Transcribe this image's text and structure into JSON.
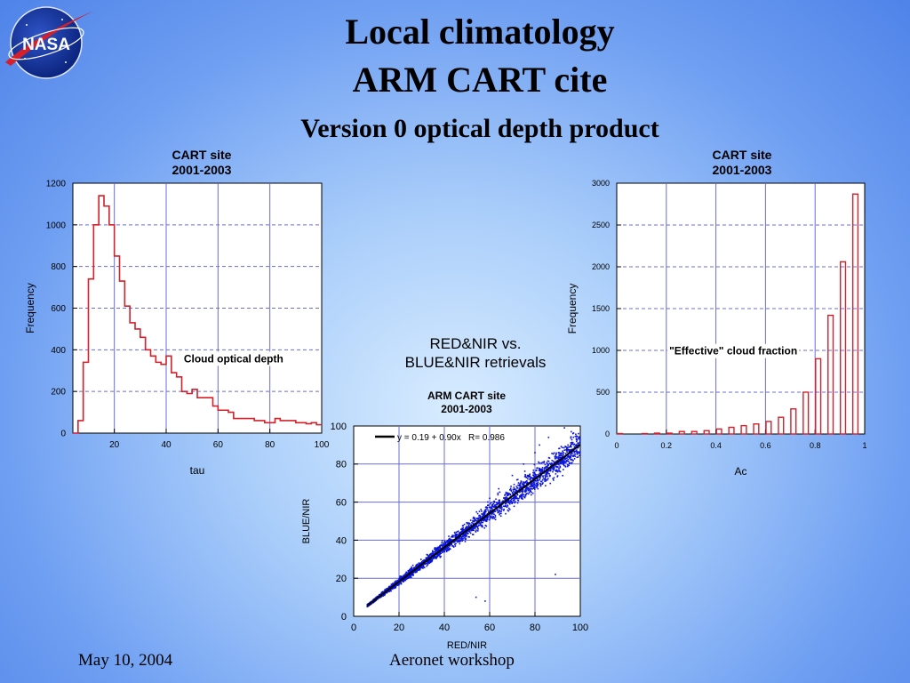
{
  "slide": {
    "title_line1": "Local climatology",
    "title_line2": "ARM CART cite",
    "subtitle": "Version 0 optical depth product",
    "footer_left": "May 10, 2004",
    "footer_center": "Aeronet workshop",
    "logo_text": "NASA",
    "middle_label_line1": "RED&NIR vs.",
    "middle_label_line2": "BLUE&NIR retrievals"
  },
  "chart_data": [
    {
      "type": "bar",
      "title_line1": "CART site",
      "title_line2": "2001-2003",
      "xlabel": "tau",
      "ylabel": "Frequency",
      "annotation": "Cloud optical depth",
      "xlim": [
        4,
        100
      ],
      "ylim": [
        0,
        1200
      ],
      "xticks": [
        20,
        40,
        60,
        80,
        100
      ],
      "yticks": [
        0,
        200,
        400,
        600,
        800,
        1000,
        1200
      ],
      "grid": true,
      "style": "step",
      "bin_width": 2,
      "bin_start": 4,
      "values": [
        0,
        60,
        340,
        740,
        1000,
        1140,
        1090,
        1000,
        850,
        730,
        610,
        530,
        500,
        460,
        400,
        370,
        340,
        330,
        370,
        290,
        270,
        200,
        190,
        210,
        170,
        170,
        170,
        130,
        110,
        110,
        100,
        70,
        70,
        70,
        70,
        60,
        60,
        50,
        50,
        70,
        60,
        60,
        60,
        50,
        50,
        45,
        50,
        40
      ]
    },
    {
      "type": "bar",
      "title_line1": "CART site",
      "title_line2": "2001-2003",
      "xlabel": "Ac",
      "ylabel": "Frequency",
      "annotation": "\"Effective\" cloud fraction",
      "xlim": [
        0,
        1
      ],
      "ylim": [
        0,
        3000
      ],
      "xticks": [
        0,
        0.2,
        0.4,
        0.6,
        0.8,
        1
      ],
      "yticks": [
        0,
        500,
        1000,
        1500,
        2000,
        2500,
        3000
      ],
      "grid": true,
      "style": "separate_bars",
      "bin_width": 0.025,
      "categories": [
        0.0125,
        0.0375,
        0.0625,
        0.0875,
        0.1125,
        0.1375,
        0.1625,
        0.1875,
        0.2125,
        0.2375,
        0.2625,
        0.2875,
        0.3125,
        0.3375,
        0.3625,
        0.3875,
        0.4125,
        0.4375,
        0.4625,
        0.4875,
        0.5125,
        0.5375,
        0.5625,
        0.5875,
        0.6125,
        0.6375,
        0.6625,
        0.6875,
        0.7125,
        0.7375,
        0.7625,
        0.7875,
        0.8125,
        0.8375,
        0.8625,
        0.8875,
        0.9125,
        0.9375,
        0.9625,
        0.9875
      ],
      "values": [
        5,
        0,
        0,
        0,
        5,
        0,
        10,
        0,
        10,
        0,
        30,
        0,
        30,
        0,
        40,
        0,
        60,
        0,
        80,
        0,
        100,
        0,
        120,
        0,
        150,
        0,
        200,
        0,
        300,
        0,
        500,
        0,
        900,
        0,
        1420,
        0,
        2060,
        0,
        2870,
        0
      ]
    },
    {
      "type": "scatter",
      "title_line1": "ARM CART site",
      "title_line2": "2001-2003",
      "xlabel": "RED/NIR",
      "ylabel": "BLUE/NIR",
      "xlim": [
        0,
        100
      ],
      "ylim": [
        0,
        100
      ],
      "xticks": [
        0,
        20,
        40,
        60,
        80,
        100
      ],
      "yticks": [
        0,
        20,
        40,
        60,
        80,
        100
      ],
      "grid": true,
      "legend": "y = 0.19 + 0.90x   R= 0.986",
      "legend_position": "top-left",
      "fit": {
        "intercept": 0.19,
        "slope": 0.9,
        "r": 0.986,
        "x_range": [
          6,
          100
        ]
      },
      "point_cloud": {
        "x_range": [
          6,
          100
        ],
        "count": 3000,
        "relation": "y = 0.19 + 0.90x",
        "spread": [
          0.5,
          8
        ]
      },
      "points": [
        [
          54,
          10
        ],
        [
          58,
          8
        ],
        [
          89,
          22
        ],
        [
          60,
          62
        ],
        [
          64,
          67
        ],
        [
          70,
          74
        ],
        [
          80,
          86
        ],
        [
          86,
          94
        ],
        [
          93,
          99
        ],
        [
          96,
          97
        ],
        [
          82,
          90
        ],
        [
          75,
          80
        ],
        [
          68,
          58
        ],
        [
          72,
          62
        ],
        [
          78,
          68
        ],
        [
          88,
          77
        ],
        [
          90,
          82
        ],
        [
          95,
          84
        ]
      ]
    }
  ]
}
